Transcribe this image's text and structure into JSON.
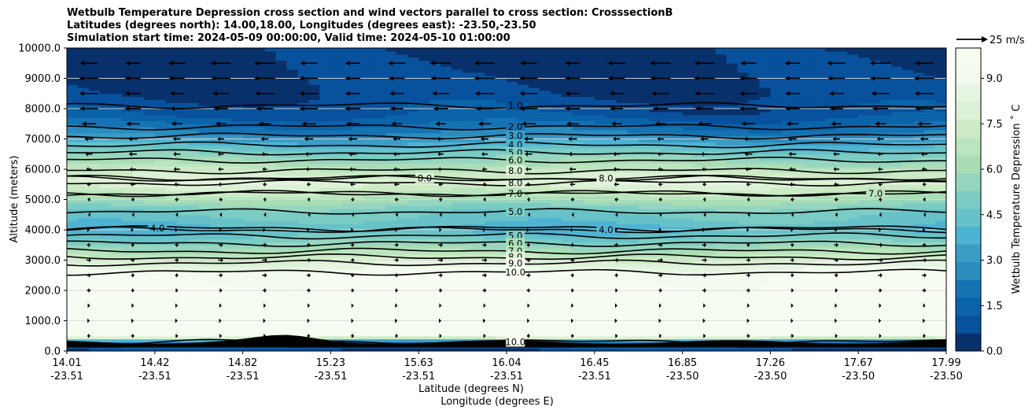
{
  "title": {
    "line1": "Wetbulb Temperature Depression cross section and wind vectors parallel to cross section: CrosssectionB",
    "line2": "Latitudes (degrees north): 14.00,18.00, Longitudes (degrees east): -23.50,-23.50",
    "line3": "Simulation start time: 2024-05-09 00:00:00, Valid time: 2024-05-10 01:00:00"
  },
  "chart_data": {
    "type": "heatmap",
    "ylabel": "Altitude (meters)",
    "xlabel_lat": "Latitude (degrees N)",
    "xlabel_lon": "Longitude (degrees E)",
    "ylim": [
      0,
      10000
    ],
    "xlim": [
      14.01,
      17.99
    ],
    "y_ticks": [
      "0.0",
      "1000.0",
      "2000.0",
      "3000.0",
      "4000.0",
      "5000.0",
      "6000.0",
      "7000.0",
      "8000.0",
      "9000.0",
      "10000.0"
    ],
    "x_ticks": [
      {
        "lat": "14.01",
        "lon": "-23.51"
      },
      {
        "lat": "14.42",
        "lon": "-23.51"
      },
      {
        "lat": "14.82",
        "lon": "-23.51"
      },
      {
        "lat": "15.23",
        "lon": "-23.51"
      },
      {
        "lat": "15.63",
        "lon": "-23.51"
      },
      {
        "lat": "16.04",
        "lon": "-23.51"
      },
      {
        "lat": "16.45",
        "lon": "-23.51"
      },
      {
        "lat": "16.85",
        "lon": "-23.50"
      },
      {
        "lat": "17.26",
        "lon": "-23.50"
      },
      {
        "lat": "17.67",
        "lon": "-23.50"
      },
      {
        "lat": "17.99",
        "lon": "-23.50"
      }
    ],
    "grid": "horizontal",
    "colorbar": {
      "label": "Wetbulb Temperature Depression ˚ C",
      "range": [
        0,
        10
      ],
      "ticks": [
        "0.0",
        "1.5",
        "3.0",
        "4.5",
        "6.0",
        "7.5",
        "9.0"
      ],
      "colors": [
        "#08306b",
        "#08519c",
        "#0b63a8",
        "#1673b3",
        "#2b8cbe",
        "#3c9cc6",
        "#4eb3d3",
        "#66c2c8",
        "#7bccc4",
        "#96d6c0",
        "#a8ddb5",
        "#bbe5be",
        "#ccebc5",
        "#dcf1d5",
        "#e6f5e1",
        "#f3fbee",
        "#f7fcf0"
      ]
    },
    "quiver_key": {
      "label": "25 m/s",
      "speed": 25
    },
    "layer_profile": [
      {
        "altitude": 0,
        "value": 0.5
      },
      {
        "altitude": 300,
        "value": 1.5
      },
      {
        "altitude": 500,
        "value": 9.9
      },
      {
        "altitude": 2000,
        "value": 9.8
      },
      {
        "altitude": 2500,
        "value": 9.6
      },
      {
        "altitude": 3000,
        "value": 7.8
      },
      {
        "altitude": 3500,
        "value": 5.5
      },
      {
        "altitude": 4000,
        "value": 4.0
      },
      {
        "altitude": 4700,
        "value": 5.0
      },
      {
        "altitude": 5200,
        "value": 7.0
      },
      {
        "altitude": 5600,
        "value": 8.2
      },
      {
        "altitude": 6000,
        "value": 7.0
      },
      {
        "altitude": 6700,
        "value": 4.5
      },
      {
        "altitude": 7200,
        "value": 2.5
      },
      {
        "altitude": 7800,
        "value": 1.2
      },
      {
        "altitude": 8500,
        "value": 0.6
      },
      {
        "altitude": 10000,
        "value": 0.3
      }
    ],
    "contours": [
      {
        "level": "1.0",
        "altitude": 8100,
        "label_lat": 16.04
      },
      {
        "level": "2.0",
        "altitude": 7400,
        "label_lat": 16.04
      },
      {
        "level": "3.0",
        "altitude": 7100,
        "label_lat": 16.04
      },
      {
        "level": "4.0",
        "altitude": 6800,
        "label_lat": 16.04
      },
      {
        "level": "5.0",
        "altitude": 6550,
        "label_lat": 16.04
      },
      {
        "level": "6.0",
        "altitude": 6300,
        "label_lat": 16.04
      },
      {
        "level": "8.0",
        "altitude": 5950,
        "label_lat": 16.04
      },
      {
        "level": "8.0",
        "altitude": 5550,
        "label_lat": 16.04
      },
      {
        "level": "7.0",
        "altitude": 5200,
        "label_lat": 16.04
      },
      {
        "level": "5.0",
        "altitude": 4600,
        "label_lat": 16.04
      },
      {
        "level": "5.0",
        "altitude": 3800,
        "label_lat": 16.04
      },
      {
        "level": "6.0",
        "altitude": 3550,
        "label_lat": 16.04
      },
      {
        "level": "7.0",
        "altitude": 3300,
        "label_lat": 16.04
      },
      {
        "level": "8.0",
        "altitude": 3100,
        "label_lat": 16.04
      },
      {
        "level": "9.0",
        "altitude": 2900,
        "label_lat": 16.04
      },
      {
        "level": "10.0",
        "altitude": 2600,
        "label_lat": 16.04
      },
      {
        "level": "4.0",
        "altitude": 4050,
        "label_lat": 14.42
      },
      {
        "level": "4.0",
        "altitude": 4000,
        "label_lat": 16.45
      },
      {
        "level": "8.0",
        "altitude": 5700,
        "label_lat": 15.63
      },
      {
        "level": "8.0",
        "altitude": 5700,
        "label_lat": 16.45
      },
      {
        "level": "7.0",
        "altitude": 5200,
        "label_lat": 17.67
      },
      {
        "level": "10.0",
        "altitude": 300,
        "label_lat": 16.04
      }
    ],
    "wind": [
      {
        "altitude": 9500,
        "u": -16
      },
      {
        "altitude": 9000,
        "u": -16
      },
      {
        "altitude": 8500,
        "u": -15
      },
      {
        "altitude": 8000,
        "u": -14
      },
      {
        "altitude": 7500,
        "u": -11
      },
      {
        "altitude": 7000,
        "u": -7
      },
      {
        "altitude": 6500,
        "u": -6
      },
      {
        "altitude": 6000,
        "u": -5
      },
      {
        "altitude": 5500,
        "u": -4
      },
      {
        "altitude": 5000,
        "u": -3
      },
      {
        "altitude": 4500,
        "u": -2
      },
      {
        "altitude": 4000,
        "u": 1.5
      },
      {
        "altitude": 3500,
        "u": 3.5
      },
      {
        "altitude": 3000,
        "u": 4
      },
      {
        "altitude": 2500,
        "u": 3.5
      },
      {
        "altitude": 2000,
        "u": 3
      },
      {
        "altitude": 1500,
        "u": 2
      },
      {
        "altitude": 1000,
        "u": 1.5
      },
      {
        "altitude": 500,
        "u": 2.5
      }
    ]
  }
}
